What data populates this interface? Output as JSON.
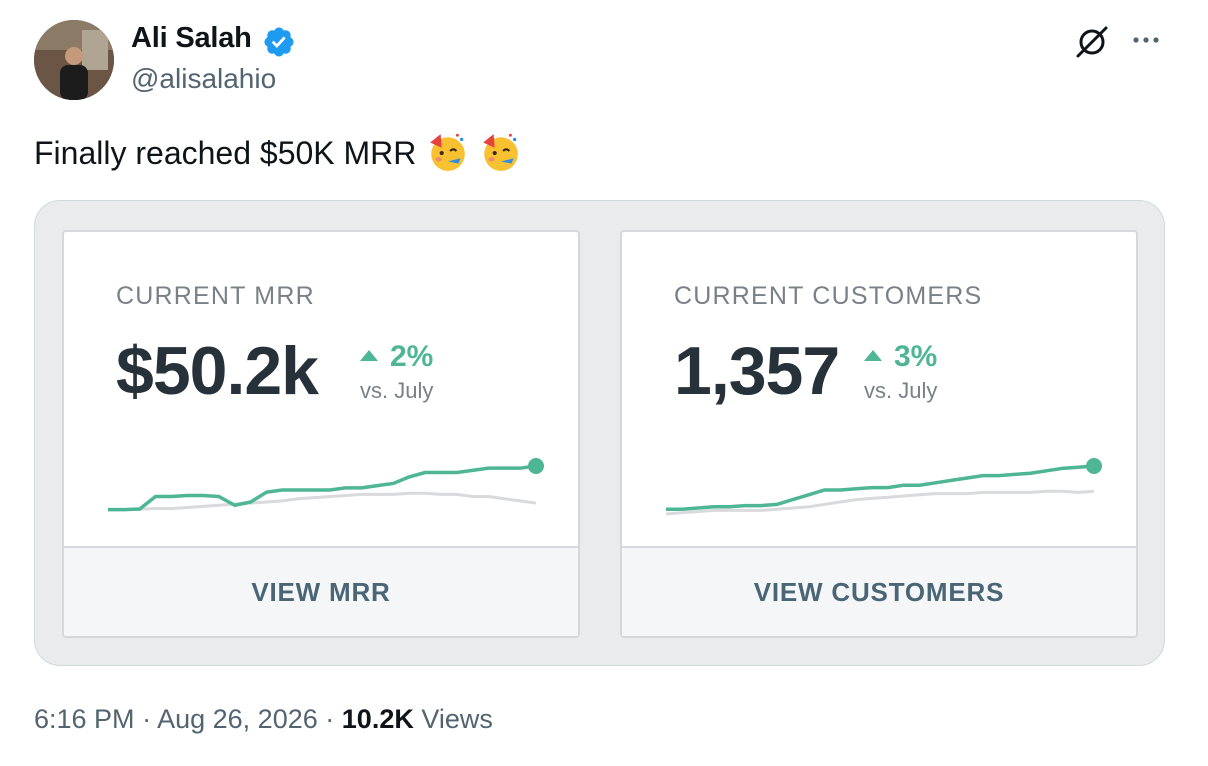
{
  "author": {
    "name": "Ali Salah",
    "handle": "@alisalahio",
    "verified": true
  },
  "tweet": {
    "text": "Finally reached $50K MRR",
    "emojis": [
      "partying-face",
      "partying-face"
    ]
  },
  "cards": [
    {
      "label": "CURRENT MRR",
      "value": "$50.2k",
      "delta": "2%",
      "delta_direction": "up",
      "comparison": "vs. July",
      "button": "VIEW MRR",
      "spark_current": [
        2,
        2,
        2.3,
        8,
        8,
        8.5,
        8.5,
        8,
        4,
        5.5,
        10,
        11,
        11,
        11,
        11,
        12,
        12,
        13,
        14,
        17,
        19,
        19,
        19,
        20,
        21,
        21,
        21,
        22
      ],
      "spark_previous": [
        2,
        2,
        2.2,
        2.5,
        2.5,
        3,
        3.5,
        4,
        4.5,
        5,
        5.5,
        6,
        7,
        7.5,
        8,
        8.5,
        9,
        9,
        9,
        9.5,
        9.5,
        9,
        9,
        8,
        8,
        7,
        6,
        5
      ]
    },
    {
      "label": "CURRENT CUSTOMERS",
      "value": "1,357",
      "delta": "3%",
      "delta_direction": "up",
      "comparison": "vs. July",
      "button": "VIEW CUSTOMERS",
      "spark_current": [
        2,
        2,
        2.5,
        3,
        3,
        3.5,
        3.5,
        4,
        6,
        8,
        10,
        10,
        10.5,
        11,
        11,
        12,
        12,
        13,
        14,
        15,
        16,
        16,
        16.5,
        17,
        18,
        19,
        19.5,
        20
      ],
      "spark_previous": [
        0,
        0.5,
        1,
        1.5,
        1.5,
        1.5,
        1.5,
        2,
        2.5,
        3,
        4,
        5,
        6,
        6.5,
        7,
        7.5,
        8,
        8.5,
        8.5,
        8.5,
        9,
        9,
        9,
        9,
        9.5,
        9.5,
        9,
        9.5
      ]
    }
  ],
  "meta": {
    "time": "6:16 PM",
    "date": "Aug 26, 2026",
    "views_count": "10.2K",
    "views_label": "Views",
    "separator": "·"
  },
  "colors": {
    "accent_green": "#4eb595",
    "previous_gray": "#d8dadc",
    "value_dark": "#27313a",
    "button_text": "#4a6676",
    "verified_blue": "#1d9bf0"
  }
}
